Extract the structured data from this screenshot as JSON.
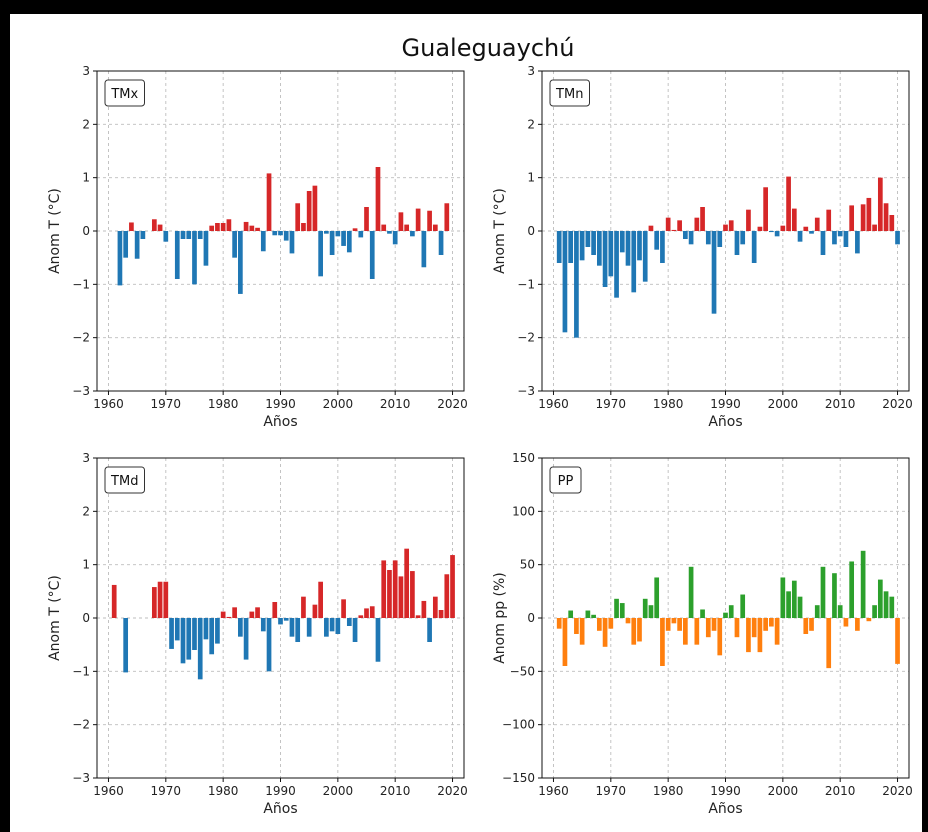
{
  "figure": {
    "title": "Gualeguaychú"
  },
  "chart_data": [
    {
      "type": "bar",
      "panel_label": "TMx",
      "xlabel": "Años",
      "ylabel": "Anom T (°C)",
      "xlim": [
        1958,
        2022
      ],
      "ylim": [
        -3,
        3
      ],
      "xticks": [
        1960,
        1970,
        1980,
        1990,
        2000,
        2010,
        2020
      ],
      "yticks": [
        -3,
        -2,
        -1,
        0,
        1,
        2,
        3
      ],
      "ytick_labels": [
        "−3",
        "−2",
        "−1",
        "0",
        "1",
        "2",
        "3"
      ],
      "grid": true,
      "colors": {
        "positive": "#d62728",
        "negative": "#1f77b4"
      },
      "x": [
        1961,
        1962,
        1963,
        1964,
        1965,
        1966,
        1967,
        1968,
        1969,
        1970,
        1971,
        1972,
        1973,
        1974,
        1975,
        1976,
        1977,
        1978,
        1979,
        1980,
        1981,
        1982,
        1983,
        1984,
        1985,
        1986,
        1987,
        1988,
        1989,
        1990,
        1991,
        1992,
        1993,
        1994,
        1995,
        1996,
        1997,
        1998,
        1999,
        2000,
        2001,
        2002,
        2003,
        2004,
        2005,
        2006,
        2007,
        2008,
        2009,
        2010,
        2011,
        2012,
        2013,
        2014,
        2015,
        2016,
        2017,
        2018,
        2019,
        2020
      ],
      "values": [
        0,
        -1.02,
        -0.5,
        0.16,
        -0.52,
        -0.15,
        0,
        0.22,
        0.12,
        -0.2,
        0,
        -0.9,
        -0.15,
        -0.15,
        -1.0,
        -0.15,
        -0.65,
        0.1,
        0.15,
        0.15,
        0.22,
        -0.5,
        -1.18,
        0.17,
        0.1,
        0.06,
        -0.38,
        1.08,
        -0.08,
        -0.08,
        -0.18,
        -0.42,
        0.52,
        0.15,
        0.75,
        0.85,
        -0.85,
        -0.05,
        -0.45,
        -0.1,
        -0.28,
        -0.4,
        0.05,
        -0.12,
        0.45,
        -0.9,
        1.2,
        0.12,
        -0.05,
        -0.25,
        0.35,
        0.12,
        -0.1,
        0.42,
        -0.68,
        0.38,
        0.12,
        -0.45,
        0.52,
        0
      ]
    },
    {
      "type": "bar",
      "panel_label": "TMn",
      "xlabel": "Años",
      "ylabel": "Anom T (°C)",
      "xlim": [
        1958,
        2022
      ],
      "ylim": [
        -3,
        3
      ],
      "xticks": [
        1960,
        1970,
        1980,
        1990,
        2000,
        2010,
        2020
      ],
      "yticks": [
        -3,
        -2,
        -1,
        0,
        1,
        2,
        3
      ],
      "ytick_labels": [
        "−3",
        "−2",
        "−1",
        "0",
        "1",
        "2",
        "3"
      ],
      "grid": true,
      "colors": {
        "positive": "#d62728",
        "negative": "#1f77b4"
      },
      "x": [
        1961,
        1962,
        1963,
        1964,
        1965,
        1966,
        1967,
        1968,
        1969,
        1970,
        1971,
        1972,
        1973,
        1974,
        1975,
        1976,
        1977,
        1978,
        1979,
        1980,
        1981,
        1982,
        1983,
        1984,
        1985,
        1986,
        1987,
        1988,
        1989,
        1990,
        1991,
        1992,
        1993,
        1994,
        1995,
        1996,
        1997,
        1998,
        1999,
        2000,
        2001,
        2002,
        2003,
        2004,
        2005,
        2006,
        2007,
        2008,
        2009,
        2010,
        2011,
        2012,
        2013,
        2014,
        2015,
        2016,
        2017,
        2018,
        2019,
        2020
      ],
      "values": [
        -0.6,
        -1.9,
        -0.6,
        -2.0,
        -0.55,
        -0.3,
        -0.45,
        -0.65,
        -1.05,
        -0.85,
        -1.25,
        -0.4,
        -0.65,
        -1.15,
        -0.55,
        -0.95,
        0.1,
        -0.35,
        -0.6,
        0.25,
        0.02,
        0.2,
        -0.15,
        -0.25,
        0.25,
        0.45,
        -0.25,
        -1.55,
        -0.3,
        0.12,
        0.2,
        -0.45,
        -0.25,
        0.4,
        -0.6,
        0.08,
        0.82,
        -0.02,
        -0.1,
        0.1,
        1.02,
        0.42,
        -0.2,
        0.08,
        -0.05,
        0.25,
        -0.45,
        0.4,
        -0.25,
        -0.1,
        -0.3,
        0.48,
        -0.42,
        0.5,
        0.62,
        0.12,
        1.0,
        0.52,
        0.3,
        -0.25
      ]
    },
    {
      "type": "bar",
      "panel_label": "TMd",
      "xlabel": "Años",
      "ylabel": "Anom T (°C)",
      "xlim": [
        1958,
        2022
      ],
      "ylim": [
        -3,
        3
      ],
      "xticks": [
        1960,
        1970,
        1980,
        1990,
        2000,
        2010,
        2020
      ],
      "yticks": [
        -3,
        -2,
        -1,
        0,
        1,
        2,
        3
      ],
      "ytick_labels": [
        "−3",
        "−2",
        "−1",
        "0",
        "1",
        "2",
        "3"
      ],
      "grid": true,
      "colors": {
        "positive": "#d62728",
        "negative": "#1f77b4"
      },
      "x": [
        1961,
        1962,
        1963,
        1964,
        1965,
        1966,
        1967,
        1968,
        1969,
        1970,
        1971,
        1972,
        1973,
        1974,
        1975,
        1976,
        1977,
        1978,
        1979,
        1980,
        1981,
        1982,
        1983,
        1984,
        1985,
        1986,
        1987,
        1988,
        1989,
        1990,
        1991,
        1992,
        1993,
        1994,
        1995,
        1996,
        1997,
        1998,
        1999,
        2000,
        2001,
        2002,
        2003,
        2004,
        2005,
        2006,
        2007,
        2008,
        2009,
        2010,
        2011,
        2012,
        2013,
        2014,
        2015,
        2016,
        2017,
        2018,
        2019,
        2020
      ],
      "values": [
        0.62,
        0,
        -1.02,
        0,
        0,
        0,
        0,
        0.58,
        0.68,
        0.68,
        -0.58,
        -0.42,
        -0.85,
        -0.78,
        -0.6,
        -1.15,
        -0.4,
        -0.68,
        -0.48,
        0.12,
        0.02,
        0.2,
        -0.35,
        -0.78,
        0.12,
        0.2,
        -0.25,
        -1.0,
        0.3,
        -0.12,
        -0.05,
        -0.35,
        -0.45,
        0.4,
        -0.35,
        0.25,
        0.68,
        -0.35,
        -0.25,
        -0.3,
        0.35,
        -0.15,
        -0.45,
        0.05,
        0.18,
        0.22,
        -0.82,
        1.08,
        0.9,
        1.08,
        0.78,
        1.3,
        0.88,
        0.05,
        0.32,
        -0.45,
        0.4,
        0.15,
        0.82,
        1.18
      ]
    },
    {
      "type": "bar",
      "panel_label": "PP",
      "xlabel": "Años",
      "ylabel": "Anom pp (%)",
      "xlim": [
        1958,
        2022
      ],
      "ylim": [
        -150,
        150
      ],
      "xticks": [
        1960,
        1970,
        1980,
        1990,
        2000,
        2010,
        2020
      ],
      "yticks": [
        -150,
        -100,
        -50,
        0,
        50,
        100,
        150
      ],
      "ytick_labels": [
        "−150",
        "−100",
        "−50",
        "0",
        "50",
        "100",
        "150"
      ],
      "grid": true,
      "colors": {
        "positive": "#2ca02c",
        "negative": "#ff7f0e"
      },
      "x": [
        1961,
        1962,
        1963,
        1964,
        1965,
        1966,
        1967,
        1968,
        1969,
        1970,
        1971,
        1972,
        1973,
        1974,
        1975,
        1976,
        1977,
        1978,
        1979,
        1980,
        1981,
        1982,
        1983,
        1984,
        1985,
        1986,
        1987,
        1988,
        1989,
        1990,
        1991,
        1992,
        1993,
        1994,
        1995,
        1996,
        1997,
        1998,
        1999,
        2000,
        2001,
        2002,
        2003,
        2004,
        2005,
        2006,
        2007,
        2008,
        2009,
        2010,
        2011,
        2012,
        2013,
        2014,
        2015,
        2016,
        2017,
        2018,
        2019,
        2020
      ],
      "values": [
        -10,
        -45,
        7,
        -15,
        -25,
        7,
        3,
        -12,
        -27,
        -10,
        18,
        14,
        -5,
        -25,
        -22,
        18,
        12,
        38,
        -45,
        -12,
        -5,
        -12,
        -25,
        48,
        -25,
        8,
        -18,
        -12,
        -35,
        5,
        12,
        -18,
        22,
        -32,
        -18,
        -32,
        -12,
        -8,
        -25,
        38,
        25,
        35,
        20,
        -15,
        -12,
        12,
        48,
        -47,
        42,
        12,
        -8,
        53,
        -12,
        63,
        -3,
        12,
        36,
        25,
        20,
        -43
      ]
    }
  ]
}
